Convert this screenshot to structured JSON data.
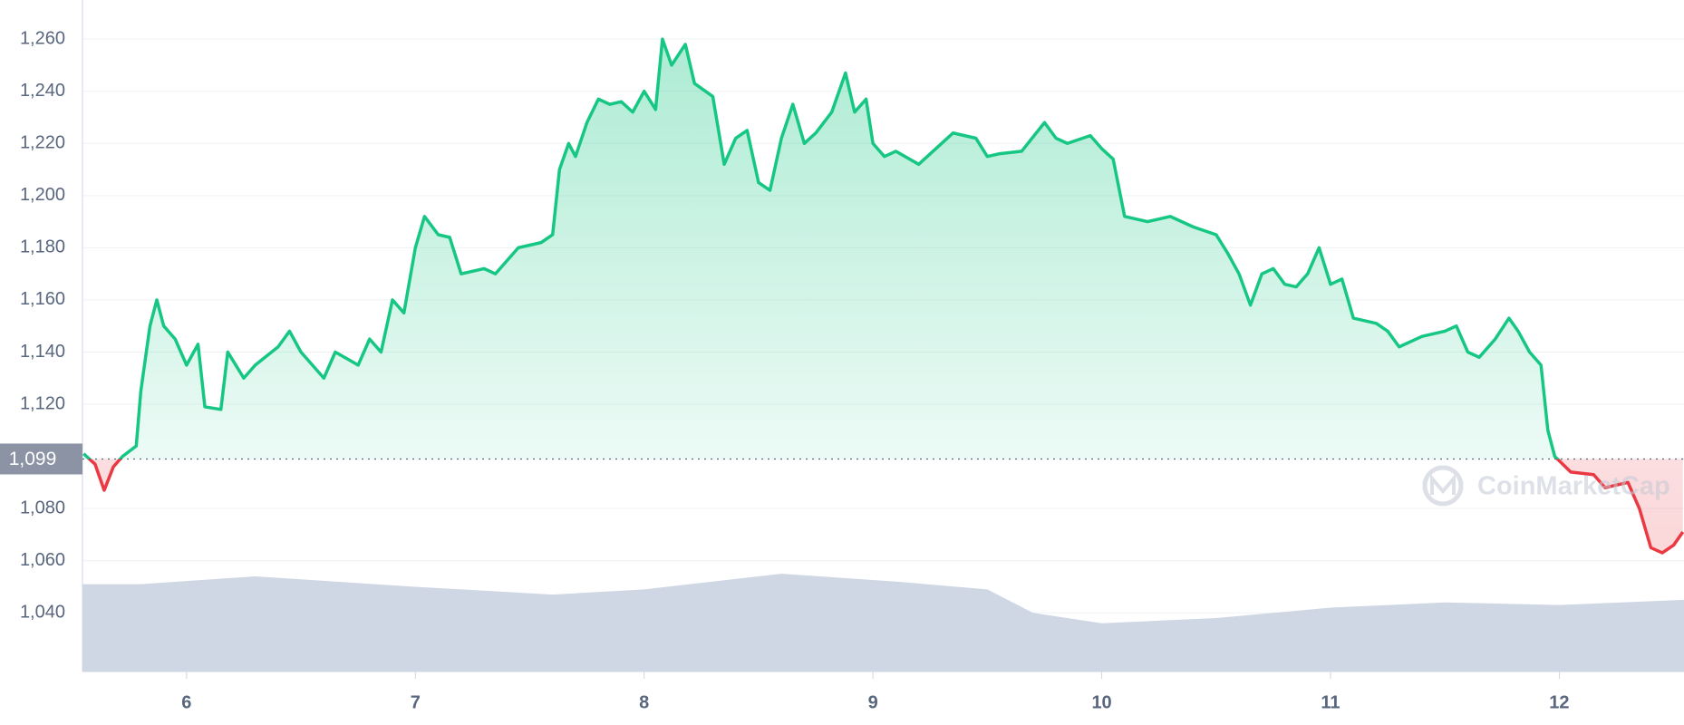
{
  "chart_data": {
    "type": "line",
    "xlim": [
      5.545,
      12.545
    ],
    "ylim": [
      1017.5,
      1275
    ],
    "xticks": [
      6,
      7,
      8,
      9,
      10,
      11,
      12
    ],
    "yticks": [
      {
        "value": 1040,
        "label": "1,040"
      },
      {
        "value": 1060,
        "label": "1,060"
      },
      {
        "value": 1080,
        "label": "1,080"
      },
      {
        "value": 1120,
        "label": "1,120"
      },
      {
        "value": 1140,
        "label": "1,140"
      },
      {
        "value": 1160,
        "label": "1,160"
      },
      {
        "value": 1180,
        "label": "1,180"
      },
      {
        "value": 1200,
        "label": "1,200"
      },
      {
        "value": 1220,
        "label": "1,220"
      },
      {
        "value": 1240,
        "label": "1,240"
      },
      {
        "value": 1260,
        "label": "1,260"
      }
    ],
    "grid": true,
    "reference": {
      "value": 1099,
      "label": "1,099"
    },
    "watermark": "CoinMarketCap",
    "series": [
      {
        "type": "line",
        "color": "#16c784",
        "down_color": "#ea3943",
        "x": [
          5.55,
          5.6,
          5.64,
          5.68,
          5.72,
          5.78,
          5.8,
          5.84,
          5.87,
          5.9,
          5.95,
          6.0,
          6.05,
          6.08,
          6.15,
          6.18,
          6.25,
          6.3,
          6.4,
          6.45,
          6.5,
          6.6,
          6.65,
          6.75,
          6.8,
          6.85,
          6.9,
          6.95,
          7.0,
          7.04,
          7.1,
          7.15,
          7.2,
          7.3,
          7.35,
          7.45,
          7.55,
          7.6,
          7.63,
          7.67,
          7.7,
          7.75,
          7.8,
          7.85,
          7.9,
          7.95,
          8.0,
          8.05,
          8.08,
          8.12,
          8.18,
          8.22,
          8.3,
          8.35,
          8.4,
          8.45,
          8.5,
          8.55,
          8.6,
          8.65,
          8.7,
          8.75,
          8.82,
          8.88,
          8.92,
          8.97,
          9.0,
          9.05,
          9.1,
          9.2,
          9.3,
          9.35,
          9.45,
          9.5,
          9.55,
          9.65,
          9.75,
          9.8,
          9.85,
          9.95,
          10.0,
          10.05,
          10.1,
          10.2,
          10.3,
          10.4,
          10.5,
          10.55,
          10.6,
          10.65,
          10.7,
          10.75,
          10.8,
          10.85,
          10.9,
          10.95,
          11.0,
          11.05,
          11.1,
          11.2,
          11.25,
          11.3,
          11.4,
          11.5,
          11.55,
          11.6,
          11.65,
          11.72,
          11.78,
          11.82,
          11.87,
          11.92,
          11.95,
          11.98,
          12.05,
          12.15,
          12.2,
          12.3,
          12.35,
          12.4,
          12.45,
          12.5,
          12.54
        ],
        "values": [
          1101,
          1097,
          1087,
          1096,
          1100,
          1104,
          1125,
          1150,
          1160,
          1150,
          1145,
          1135,
          1143,
          1119,
          1118,
          1140,
          1130,
          1135,
          1142,
          1148,
          1140,
          1130,
          1140,
          1135,
          1145,
          1140,
          1160,
          1155,
          1180,
          1192,
          1185,
          1184,
          1170,
          1172,
          1170,
          1180,
          1182,
          1185,
          1210,
          1220,
          1215,
          1228,
          1237,
          1235,
          1236,
          1232,
          1240,
          1233,
          1260,
          1250,
          1258,
          1243,
          1238,
          1212,
          1222,
          1225,
          1205,
          1202,
          1222,
          1235,
          1220,
          1224,
          1232,
          1247,
          1232,
          1237,
          1220,
          1215,
          1217,
          1212,
          1220,
          1224,
          1222,
          1215,
          1216,
          1217,
          1228,
          1222,
          1220,
          1223,
          1218,
          1214,
          1192,
          1190,
          1192,
          1188,
          1185,
          1178,
          1170,
          1158,
          1170,
          1172,
          1166,
          1165,
          1170,
          1180,
          1166,
          1168,
          1153,
          1151,
          1148,
          1142,
          1146,
          1148,
          1150,
          1140,
          1138,
          1145,
          1153,
          1148,
          1140,
          1135,
          1110,
          1100,
          1094,
          1093,
          1088,
          1090,
          1080,
          1065,
          1063,
          1066,
          1071
        ]
      },
      {
        "type": "area",
        "color": "#cfd6e4",
        "x": [
          5.545,
          5.8,
          6.3,
          7.0,
          7.6,
          8.0,
          8.6,
          9.1,
          9.5,
          9.7,
          10.0,
          10.5,
          11.0,
          11.5,
          12.0,
          12.545
        ],
        "values": [
          1051,
          1051,
          1054,
          1050,
          1047,
          1049,
          1055,
          1052,
          1049,
          1040,
          1036,
          1038,
          1042,
          1044,
          1043,
          1045
        ]
      }
    ]
  }
}
